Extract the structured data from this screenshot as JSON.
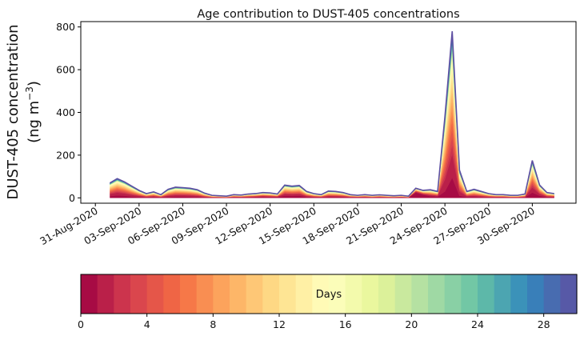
{
  "chart_data": {
    "type": "area",
    "title": "Age contribution to DUST-405 concentrations",
    "ylabel_line1": "DUST-405 concentration",
    "ylabel_line2": "(ng m",
    "ylabel_sup": "−3",
    "ylabel_close": ")",
    "xlabel": "",
    "ylim": [
      -25,
      825
    ],
    "yticks": [
      0,
      200,
      400,
      600,
      800
    ],
    "ytick_labels": [
      "0",
      "200",
      "400",
      "600",
      "800"
    ],
    "xlim": [
      0,
      34
    ],
    "xtick_positions": [
      1,
      4,
      7,
      10,
      13,
      16,
      19,
      22,
      25,
      28,
      31
    ],
    "xtick_labels": [
      "31-Aug-2020",
      "03-Sep-2020",
      "06-Sep-2020",
      "09-Sep-2020",
      "12-Sep-2020",
      "15-Sep-2020",
      "18-Sep-2020",
      "21-Sep-2020",
      "24-Sep-2020",
      "27-Sep-2020",
      "30-Sep-2020"
    ],
    "x": [
      2,
      2.5,
      3,
      3.5,
      4,
      4.5,
      5,
      5.5,
      6,
      6.5,
      7,
      7.5,
      8,
      8.5,
      9,
      9.5,
      10,
      10.5,
      11,
      11.5,
      12,
      12.5,
      13,
      13.5,
      14,
      14.5,
      15,
      15.5,
      16,
      16.5,
      17,
      17.5,
      18,
      18.5,
      19,
      19.5,
      20,
      20.5,
      21,
      21.5,
      22,
      22.5,
      23,
      23.5,
      24,
      24.5,
      25,
      25.5,
      26,
      26.5,
      27,
      27.5,
      28,
      28.5,
      29,
      29.5,
      30,
      30.5,
      31,
      31.5,
      32,
      32.5
    ],
    "total": [
      70,
      90,
      75,
      55,
      35,
      20,
      28,
      15,
      40,
      50,
      48,
      45,
      38,
      22,
      12,
      10,
      8,
      15,
      13,
      18,
      20,
      25,
      23,
      18,
      60,
      55,
      58,
      30,
      20,
      15,
      32,
      30,
      25,
      15,
      12,
      15,
      12,
      14,
      12,
      10,
      12,
      8,
      45,
      35,
      38,
      30,
      380,
      780,
      130,
      30,
      40,
      30,
      20,
      15,
      15,
      12,
      12,
      18,
      175,
      60,
      25,
      20
    ],
    "young": [
      8,
      12,
      10,
      6,
      4,
      2,
      3,
      2,
      4,
      6,
      6,
      5,
      4,
      2,
      1,
      1,
      1,
      2,
      2,
      2,
      3,
      4,
      3,
      3,
      10,
      9,
      10,
      4,
      2,
      2,
      3,
      3,
      3,
      2,
      2,
      2,
      1,
      2,
      1,
      1,
      2,
      1,
      25,
      15,
      8,
      6,
      30,
      95,
      10,
      4,
      4,
      3,
      2,
      2,
      2,
      1,
      1,
      2,
      25,
      10,
      3,
      2
    ],
    "mid_fraction": 0.85,
    "colorbar": {
      "label": "Days",
      "min": 0,
      "max": 30,
      "n_bins": 30,
      "ticks": [
        0,
        4,
        8,
        12,
        16,
        20,
        24,
        28
      ],
      "tick_labels": [
        "0",
        "4",
        "8",
        "12",
        "16",
        "20",
        "24",
        "28"
      ]
    },
    "palette": [
      "#9e0142",
      "#d53e4f",
      "#f46d43",
      "#fdae61",
      "#fee08b",
      "#ffffbf",
      "#e6f598",
      "#abdda4",
      "#66c2a5",
      "#3288bd",
      "#5e4fa2"
    ]
  }
}
